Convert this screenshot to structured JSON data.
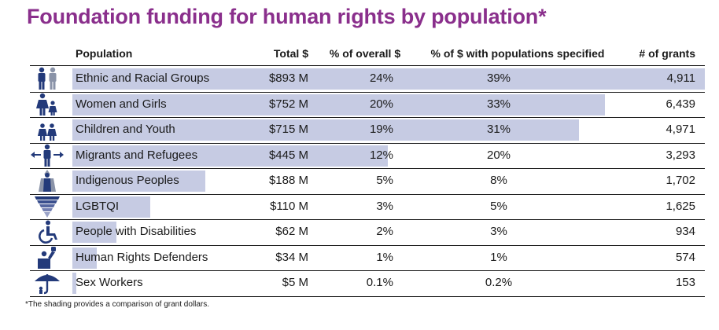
{
  "title": "Foundation funding for human rights by population*",
  "footnote": "*The shading provides a comparison of grant dollars.",
  "colors": {
    "title": "#8a2f8c",
    "icon": "#233a7a",
    "shading": "#c6cbe3"
  },
  "chart_data": {
    "type": "table",
    "title": "Foundation funding for human rights by population*",
    "columns": [
      "Population",
      "Total $",
      "% of overall $",
      "% of $ with populations specified",
      "# of grants"
    ],
    "rows": [
      {
        "icon": "people-pair-icon",
        "population": "Ethnic and Racial Groups",
        "total": "$893 M",
        "total_millions": 893,
        "pct_overall": "24%",
        "pct_specified": "39%",
        "grants": "4,911"
      },
      {
        "icon": "woman-girl-icon",
        "population": "Women and Girls",
        "total": "$752 M",
        "total_millions": 752,
        "pct_overall": "20%",
        "pct_specified": "33%",
        "grants": "6,439"
      },
      {
        "icon": "children-icon",
        "population": "Children and Youth",
        "total": "$715 M",
        "total_millions": 715,
        "pct_overall": "19%",
        "pct_specified": "31%",
        "grants": "4,971"
      },
      {
        "icon": "migrant-arrows-icon",
        "population": "Migrants and Refugees",
        "total": "$445 M",
        "total_millions": 445,
        "pct_overall": "12%",
        "pct_specified": "20%",
        "grants": "3,293"
      },
      {
        "icon": "indigenous-people-icon",
        "population": "Indigenous Peoples",
        "total": "$188 M",
        "total_millions": 188,
        "pct_overall": "5%",
        "pct_specified": "8%",
        "grants": "1,702"
      },
      {
        "icon": "rainbow-triangle-icon",
        "population": "LGBTQI",
        "total": "$110 M",
        "total_millions": 110,
        "pct_overall": "3%",
        "pct_specified": "5%",
        "grants": "1,625"
      },
      {
        "icon": "wheelchair-icon",
        "population": "People with Disabilities",
        "total": "$62 M",
        "total_millions": 62,
        "pct_overall": "2%",
        "pct_specified": "3%",
        "grants": "934"
      },
      {
        "icon": "raised-fist-person-icon",
        "population": "Human Rights Defenders",
        "total": "$34 M",
        "total_millions": 34,
        "pct_overall": "1%",
        "pct_specified": "1%",
        "grants": "574"
      },
      {
        "icon": "umbrella-icon",
        "population": "Sex Workers",
        "total": "$5 M",
        "total_millions": 5,
        "pct_overall": "0.1%",
        "pct_specified": "0.2%",
        "grants": "153"
      }
    ]
  }
}
